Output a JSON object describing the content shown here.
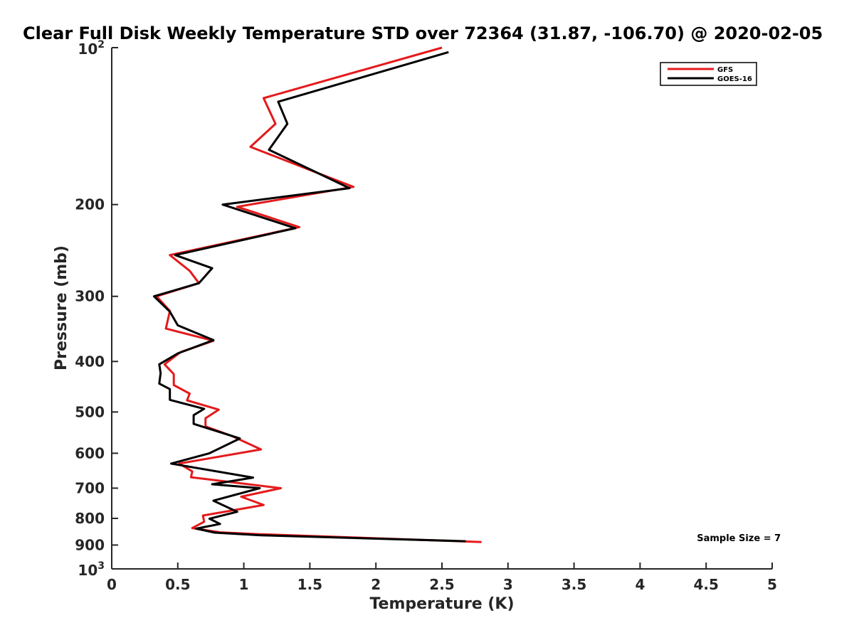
{
  "chart_data": {
    "type": "line",
    "title": "Clear Full Disk Weekly Temperature STD over 72364 (31.87, -106.70) @ 2020-02-05",
    "xlabel": "Temperature (K)",
    "ylabel": "Pressure (mb)",
    "xlim": [
      0,
      5
    ],
    "ylim": [
      100,
      1000
    ],
    "y_scale": "log",
    "y_reversed": true,
    "grid": false,
    "legend_position": "top-right",
    "x_ticks": [
      {
        "value": 0,
        "label": "0"
      },
      {
        "value": 0.5,
        "label": "0.5"
      },
      {
        "value": 1,
        "label": "1"
      },
      {
        "value": 1.5,
        "label": "1.5"
      },
      {
        "value": 2,
        "label": "2"
      },
      {
        "value": 2.5,
        "label": "2.5"
      },
      {
        "value": 3,
        "label": "3"
      },
      {
        "value": 3.5,
        "label": "3.5"
      },
      {
        "value": 4,
        "label": "4"
      },
      {
        "value": 4.5,
        "label": "4.5"
      },
      {
        "value": 5,
        "label": "5"
      }
    ],
    "y_ticks": [
      {
        "value": 100,
        "base": "10",
        "exp": "2"
      },
      {
        "value": 200,
        "label": "200"
      },
      {
        "value": 300,
        "label": "300"
      },
      {
        "value": 400,
        "label": "400"
      },
      {
        "value": 500,
        "label": "500"
      },
      {
        "value": 600,
        "label": "600"
      },
      {
        "value": 700,
        "label": "700"
      },
      {
        "value": 800,
        "label": "800"
      },
      {
        "value": 900,
        "label": "900"
      },
      {
        "value": 1000,
        "base": "10",
        "exp": "3"
      }
    ],
    "series": [
      {
        "name": "GFS",
        "color": "#e41a1c",
        "points": [
          [
            2.5,
            100
          ],
          [
            1.15,
            125
          ],
          [
            1.24,
            140
          ],
          [
            1.05,
            155
          ],
          [
            1.83,
            185
          ],
          [
            0.95,
            202
          ],
          [
            1.42,
            221
          ],
          [
            0.44,
            250
          ],
          [
            0.59,
            268
          ],
          [
            0.66,
            283
          ],
          [
            0.34,
            300
          ],
          [
            0.44,
            320
          ],
          [
            0.41,
            346
          ],
          [
            0.77,
            365
          ],
          [
            0.52,
            384
          ],
          [
            0.4,
            405
          ],
          [
            0.47,
            423
          ],
          [
            0.47,
            444
          ],
          [
            0.59,
            461
          ],
          [
            0.57,
            475
          ],
          [
            0.81,
            495
          ],
          [
            0.71,
            514
          ],
          [
            0.71,
            533
          ],
          [
            0.91,
            556
          ],
          [
            1.13,
            590
          ],
          [
            0.51,
            628
          ],
          [
            0.61,
            650
          ],
          [
            0.6,
            667
          ],
          [
            1.28,
            700
          ],
          [
            0.98,
            727
          ],
          [
            1.15,
            754
          ],
          [
            0.69,
            790
          ],
          [
            0.7,
            812
          ],
          [
            0.61,
            835
          ],
          [
            0.82,
            851
          ],
          [
            1.12,
            858
          ],
          [
            2.8,
            888
          ]
        ]
      },
      {
        "name": "GOES-16",
        "color": "#000000",
        "points": [
          [
            2.55,
            102
          ],
          [
            1.26,
            127
          ],
          [
            1.33,
            140
          ],
          [
            1.19,
            157
          ],
          [
            1.8,
            186
          ],
          [
            0.84,
            200
          ],
          [
            1.39,
            222
          ],
          [
            0.48,
            250
          ],
          [
            0.76,
            265
          ],
          [
            0.66,
            283
          ],
          [
            0.32,
            300
          ],
          [
            0.44,
            321
          ],
          [
            0.5,
            341
          ],
          [
            0.77,
            364
          ],
          [
            0.5,
            386
          ],
          [
            0.36,
            405
          ],
          [
            0.37,
            421
          ],
          [
            0.36,
            441
          ],
          [
            0.44,
            452
          ],
          [
            0.44,
            474
          ],
          [
            0.7,
            493
          ],
          [
            0.62,
            507
          ],
          [
            0.62,
            527
          ],
          [
            0.97,
            562
          ],
          [
            0.74,
            600
          ],
          [
            0.45,
            628
          ],
          [
            1.07,
            668
          ],
          [
            0.76,
            688
          ],
          [
            1.12,
            700
          ],
          [
            0.77,
            740
          ],
          [
            0.95,
            777
          ],
          [
            0.74,
            801
          ],
          [
            0.82,
            820
          ],
          [
            0.64,
            837
          ],
          [
            0.78,
            852
          ],
          [
            1.13,
            862
          ],
          [
            2.68,
            885
          ]
        ]
      }
    ],
    "annotations": [
      {
        "text": "Sample Size = 7",
        "x": 4.43,
        "y": 885
      }
    ]
  }
}
